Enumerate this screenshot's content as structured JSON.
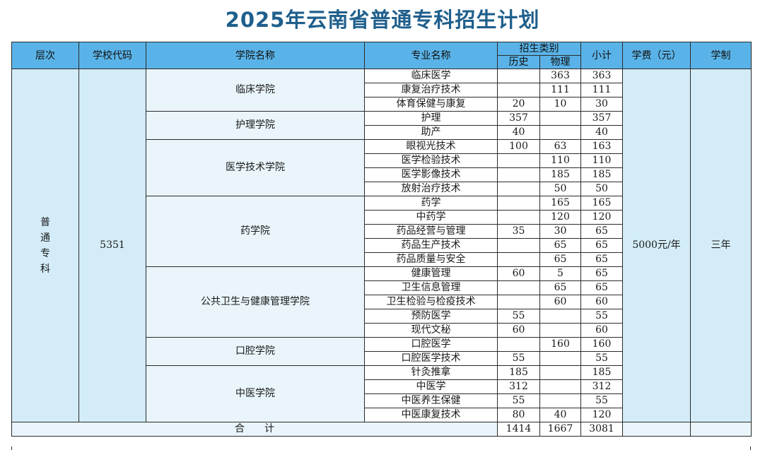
{
  "title": "2025年云南省普通专科招生计划",
  "headers": {
    "level": "层次",
    "school_code": "学校代码",
    "college": "学院名称",
    "major": "专业名称",
    "category": "招生类别",
    "history": "历史",
    "physics": "物理",
    "subtotal": "小计",
    "fee": "学费（元）",
    "years": "学制"
  },
  "level": "普通专科",
  "school_code": "5351",
  "fee": "5000元/年",
  "years": "三年",
  "colleges": [
    {
      "name": "临床学院",
      "majors": [
        {
          "name": "临床医学",
          "history": "",
          "physics": "363",
          "subtotal": "363"
        },
        {
          "name": "康复治疗技术",
          "history": "",
          "physics": "111",
          "subtotal": "111"
        },
        {
          "name": "体育保健与康复",
          "history": "20",
          "physics": "10",
          "subtotal": "30"
        }
      ]
    },
    {
      "name": "护理学院",
      "majors": [
        {
          "name": "护理",
          "history": "357",
          "physics": "",
          "subtotal": "357"
        },
        {
          "name": "助产",
          "history": "40",
          "physics": "",
          "subtotal": "40"
        }
      ]
    },
    {
      "name": "医学技术学院",
      "majors": [
        {
          "name": "眼视光技术",
          "history": "100",
          "physics": "63",
          "subtotal": "163"
        },
        {
          "name": "医学检验技术",
          "history": "",
          "physics": "110",
          "subtotal": "110"
        },
        {
          "name": "医学影像技术",
          "history": "",
          "physics": "185",
          "subtotal": "185"
        },
        {
          "name": "放射治疗技术",
          "history": "",
          "physics": "50",
          "subtotal": "50"
        }
      ]
    },
    {
      "name": "药学院",
      "majors": [
        {
          "name": "药学",
          "history": "",
          "physics": "165",
          "subtotal": "165"
        },
        {
          "name": "中药学",
          "history": "",
          "physics": "120",
          "subtotal": "120"
        },
        {
          "name": "药品经营与管理",
          "history": "35",
          "physics": "30",
          "subtotal": "65"
        },
        {
          "name": "药品生产技术",
          "history": "",
          "physics": "65",
          "subtotal": "65"
        },
        {
          "name": "药品质量与安全",
          "history": "",
          "physics": "65",
          "subtotal": "65"
        }
      ]
    },
    {
      "name": "公共卫生与健康管理学院",
      "majors": [
        {
          "name": "健康管理",
          "history": "60",
          "physics": "5",
          "subtotal": "65"
        },
        {
          "name": "卫生信息管理",
          "history": "",
          "physics": "65",
          "subtotal": "65"
        },
        {
          "name": "卫生检验与检疫技术",
          "history": "",
          "physics": "60",
          "subtotal": "60"
        },
        {
          "name": "预防医学",
          "history": "55",
          "physics": "",
          "subtotal": "55"
        },
        {
          "name": "现代文秘",
          "history": "60",
          "physics": "",
          "subtotal": "60"
        }
      ]
    },
    {
      "name": "口腔学院",
      "majors": [
        {
          "name": "口腔医学",
          "history": "",
          "physics": "160",
          "subtotal": "160"
        },
        {
          "name": "口腔医学技术",
          "history": "55",
          "physics": "",
          "subtotal": "55"
        }
      ]
    },
    {
      "name": "中医学院",
      "majors": [
        {
          "name": "针灸推拿",
          "history": "185",
          "physics": "",
          "subtotal": "185"
        },
        {
          "name": "中医学",
          "history": "312",
          "physics": "",
          "subtotal": "312"
        },
        {
          "name": "中医养生保健",
          "history": "55",
          "physics": "",
          "subtotal": "55"
        },
        {
          "name": "中医康复技术",
          "history": "80",
          "physics": "40",
          "subtotal": "120"
        }
      ]
    }
  ],
  "total": {
    "label": "合　　计",
    "history": "1414",
    "physics": "1667",
    "subtotal": "3081"
  },
  "colors": {
    "title": "#1f5f8c",
    "header": "#5ab3e8",
    "light": "#d3ecf8",
    "lighter": "#e9f5fb"
  }
}
